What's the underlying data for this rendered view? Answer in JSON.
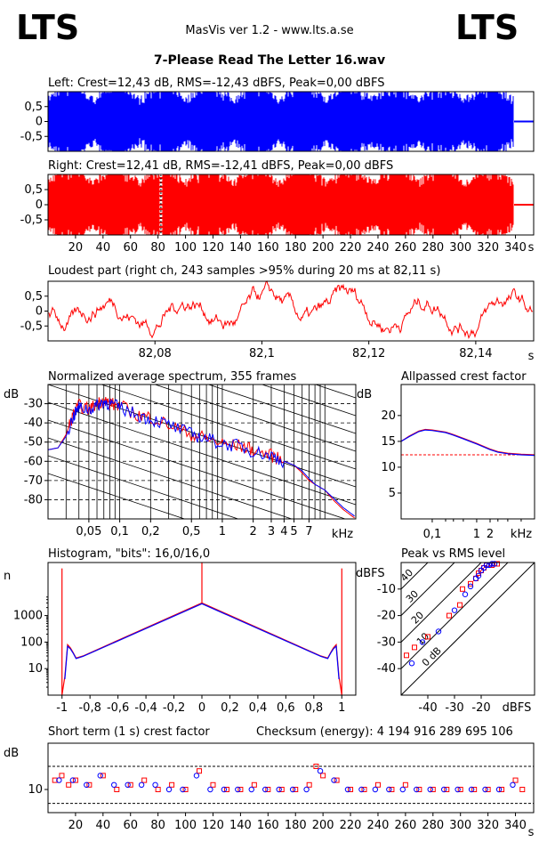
{
  "header": {
    "logo_left": "LTS",
    "logo_right": "LTS",
    "app": "MasVis ver 1.2 - www.lts.a.se",
    "file": "7-Please Read The Letter 16.wav"
  },
  "colors": {
    "left": "#0000ff",
    "right": "#ff0000",
    "grid": "#000000"
  },
  "chart_data": [
    {
      "type": "area",
      "name": "left-waveform",
      "title": "Left: Crest=12,43 dB, RMS=-12,43 dBFS, Peak=0,00 dBFS",
      "ylim": [
        -1,
        1
      ],
      "yticks": [
        "0,5",
        "0",
        "-0,5"
      ],
      "ytick_values": [
        0.5,
        0,
        -0.5
      ]
    },
    {
      "type": "area",
      "name": "right-waveform",
      "title": "Right: Crest=12,41 dB, RMS=-12,41 dBFS, Peak=0,00 dBFS",
      "ylim": [
        -1,
        1
      ],
      "yticks": [
        "0,5",
        "0",
        "-0,5"
      ],
      "ytick_values": [
        0.5,
        0,
        -0.5
      ],
      "xlim": [
        0,
        350
      ],
      "xticks": [
        "20",
        "40",
        "60",
        "80",
        "100",
        "120",
        "140",
        "160",
        "180",
        "200",
        "220",
        "240",
        "260",
        "280",
        "300",
        "320",
        "340"
      ],
      "xtick_values": [
        20,
        40,
        60,
        80,
        100,
        120,
        140,
        160,
        180,
        200,
        220,
        240,
        260,
        280,
        300,
        320,
        340
      ],
      "xunit": "s",
      "loudest_marker_x": 82.11
    },
    {
      "type": "line",
      "name": "loudest-part",
      "title": "Loudest part (right ch, 243 samples >95% during 20 ms at 82,11 s)",
      "ylim": [
        -1,
        1
      ],
      "yticks": [
        "0,5",
        "0",
        "-0,5"
      ],
      "ytick_values": [
        0.5,
        0,
        -0.5
      ],
      "xlim": [
        82.06,
        82.15
      ],
      "xticks": [
        "82,08",
        "82,1",
        "82,12",
        "82,14"
      ],
      "xtick_values": [
        82.08,
        82.1,
        82.12,
        82.14
      ],
      "xunit": "s"
    },
    {
      "type": "line",
      "name": "average-spectrum",
      "title": "Normalized average spectrum, 355 frames",
      "ylabel": "dB",
      "ylim": [
        -90,
        -20
      ],
      "yticks": [
        "-30",
        "-40",
        "-50",
        "-60",
        "-70",
        "-80"
      ],
      "ytick_values": [
        -30,
        -40,
        -50,
        -60,
        -70,
        -80
      ],
      "xscale": "log",
      "xlim": [
        0.02,
        20
      ],
      "xticks": [
        "0,05",
        "0,1",
        "0,2",
        "0,5",
        "1",
        "2",
        "3",
        "4",
        "5",
        "7"
      ],
      "xtick_values": [
        0.05,
        0.1,
        0.2,
        0.5,
        1,
        2,
        3,
        4,
        5,
        7
      ],
      "xunit": "kHz",
      "series": [
        {
          "color": "#ff0000",
          "x": [
            0.02,
            0.025,
            0.03,
            0.035,
            0.04,
            0.05,
            0.06,
            0.07,
            0.08,
            0.1,
            0.15,
            0.2,
            0.3,
            0.5,
            0.7,
            1,
            1.5,
            2,
            3,
            4,
            5,
            6,
            7,
            8,
            10,
            12,
            15,
            20
          ],
          "y": [
            -54,
            -53,
            -46,
            -36,
            -31,
            -33,
            -30,
            -28,
            -30,
            -31,
            -36,
            -37,
            -41,
            -46,
            -48,
            -51,
            -52,
            -54,
            -57,
            -60,
            -62,
            -66,
            -70,
            -72,
            -75,
            -80,
            -85,
            -90
          ]
        },
        {
          "color": "#0000ff",
          "x": [
            0.02,
            0.025,
            0.03,
            0.035,
            0.04,
            0.05,
            0.06,
            0.07,
            0.08,
            0.1,
            0.15,
            0.2,
            0.3,
            0.5,
            0.7,
            1,
            1.5,
            2,
            3,
            4,
            5,
            6,
            7,
            8,
            10,
            12,
            15,
            20
          ],
          "y": [
            -54,
            -53,
            -47,
            -37,
            -32,
            -33,
            -31,
            -29,
            -30,
            -32,
            -36,
            -38,
            -41,
            -46,
            -48,
            -51,
            -52,
            -55,
            -57,
            -60,
            -62,
            -65,
            -69,
            -72,
            -75,
            -79,
            -84,
            -89
          ]
        }
      ]
    },
    {
      "type": "line",
      "name": "allpassed-crest",
      "title": "Allpassed crest factor",
      "ylabel": "dB",
      "ylim": [
        0,
        26
      ],
      "yticks": [
        "20",
        "15",
        "10",
        "5"
      ],
      "ytick_values": [
        20,
        15,
        10,
        5
      ],
      "xscale": "log",
      "xlim": [
        0.02,
        20
      ],
      "xticks": [
        "0,1",
        "1",
        "2",
        "kHz"
      ],
      "xtick_values": [
        0.1,
        1,
        2
      ],
      "reference_line": 12.4,
      "series": [
        {
          "color": "#ff0000",
          "x": [
            0.02,
            0.03,
            0.05,
            0.07,
            0.1,
            0.2,
            0.3,
            0.5,
            1,
            2,
            3,
            5,
            10,
            20
          ],
          "y": [
            15,
            16,
            17,
            17.3,
            17.2,
            16.8,
            16.3,
            15.6,
            14.6,
            13.5,
            13,
            12.7,
            12.5,
            12.4
          ]
        },
        {
          "color": "#0000ff",
          "x": [
            0.02,
            0.03,
            0.05,
            0.07,
            0.1,
            0.2,
            0.3,
            0.5,
            1,
            2,
            3,
            5,
            10,
            20
          ],
          "y": [
            15,
            15.9,
            16.9,
            17.2,
            17.1,
            16.7,
            16.2,
            15.5,
            14.5,
            13.4,
            12.9,
            12.6,
            12.4,
            12.3
          ]
        }
      ]
    },
    {
      "type": "line",
      "name": "histogram",
      "title": "Histogram, \"bits\": 16,0/16,0",
      "ylabel": "n",
      "yscale": "log",
      "ylim": [
        1,
        100000
      ],
      "yticks": [
        "1000",
        "100",
        "10"
      ],
      "ytick_values": [
        1000,
        100,
        10
      ],
      "xlim": [
        -1.1,
        1.1
      ],
      "xticks": [
        "-1",
        "-0,8",
        "-0,6",
        "-0,4",
        "-0,2",
        "0",
        "0,2",
        "0,4",
        "0,6",
        "0,8",
        "1"
      ],
      "xtick_values": [
        -1,
        -0.8,
        -0.6,
        -0.4,
        -0.2,
        0,
        0.2,
        0.4,
        0.6,
        0.8,
        1
      ],
      "series": [
        {
          "color": "#ff0000",
          "x": [
            -1,
            -1,
            -0.98,
            -0.96,
            -0.94,
            -0.92,
            -0.9,
            -0.85,
            -0.5,
            0,
            0.5,
            0.85,
            0.9,
            0.92,
            0.94,
            0.96,
            0.98,
            1,
            1
          ],
          "y": [
            60000,
            1,
            5,
            80,
            60,
            40,
            25,
            30,
            200,
            3000,
            200,
            30,
            25,
            40,
            60,
            80,
            5,
            1,
            60000
          ]
        },
        {
          "color": "#0000ff",
          "x": [
            -0.98,
            -0.96,
            -0.94,
            -0.92,
            -0.9,
            -0.85,
            -0.5,
            0,
            0.5,
            0.85,
            0.9,
            0.92,
            0.94,
            0.96,
            0.98
          ],
          "y": [
            4,
            70,
            55,
            38,
            24,
            29,
            190,
            2800,
            190,
            29,
            24,
            38,
            55,
            70,
            4
          ]
        }
      ]
    },
    {
      "type": "scatter",
      "name": "peak-vs-rms",
      "title": "Peak vs RMS level",
      "ylabel": "dBFS",
      "xlim": [
        -50,
        0
      ],
      "ylim": [
        -50,
        0
      ],
      "yticks": [
        "-10",
        "-20",
        "-30",
        "-40"
      ],
      "ytick_values": [
        -10,
        -20,
        -30,
        -40
      ],
      "xticks": [
        "-40",
        "-30",
        "-20"
      ],
      "xtick_values": [
        -40,
        -30,
        -20
      ],
      "xunit": "dBFS",
      "diag_labels": [
        "40",
        "30",
        "20",
        "10",
        "0 dB"
      ],
      "diag_values": [
        40,
        30,
        20,
        10,
        0
      ],
      "series": [
        {
          "color": "#ff0000",
          "x": [
            -48,
            -45,
            -40,
            -32,
            -28,
            -27,
            -24,
            -22,
            -21,
            -20,
            -19,
            -18,
            -17,
            -16,
            -15,
            -14
          ],
          "y": [
            -35,
            -32,
            -28,
            -20,
            -16,
            -10,
            -8,
            -6,
            -4,
            -3,
            -2,
            -1,
            -1,
            -1,
            -0.5,
            -0.5
          ]
        },
        {
          "color": "#0000ff",
          "x": [
            -46,
            -42,
            -36,
            -30,
            -26,
            -24,
            -22,
            -21,
            -20,
            -19,
            -18,
            -17,
            -16,
            -15
          ],
          "y": [
            -38,
            -30,
            -26,
            -18,
            -12,
            -9,
            -6,
            -5,
            -3,
            -2,
            -1,
            -1,
            -0.5,
            -0.5
          ]
        }
      ]
    },
    {
      "type": "scatter",
      "name": "short-term-crest",
      "title": "Short term (1 s) crest factor",
      "checksum": "Checksum (energy):  4 194 916 289 695 106",
      "ylabel": "dB",
      "ylim": [
        5,
        20
      ],
      "yticks": [
        "10"
      ],
      "ytick_values": [
        10
      ],
      "reference_lines": [
        15,
        7
      ],
      "xlim": [
        0,
        350
      ],
      "xticks": [
        "20",
        "40",
        "60",
        "80",
        "100",
        "120",
        "140",
        "160",
        "180",
        "200",
        "220",
        "240",
        "260",
        "280",
        "300",
        "320",
        "340"
      ],
      "xtick_values": [
        20,
        40,
        60,
        80,
        100,
        120,
        140,
        160,
        180,
        200,
        220,
        240,
        260,
        280,
        300,
        320,
        340
      ],
      "xunit": "s",
      "series": [
        {
          "color": "#ff0000",
          "x": [
            5,
            10,
            15,
            20,
            30,
            40,
            50,
            60,
            70,
            80,
            90,
            100,
            110,
            120,
            130,
            140,
            150,
            160,
            170,
            180,
            190,
            195,
            200,
            210,
            220,
            230,
            240,
            250,
            260,
            270,
            280,
            290,
            300,
            310,
            320,
            330,
            340,
            345
          ],
          "y": [
            12,
            13,
            11,
            12,
            11,
            13,
            10,
            11,
            12,
            10,
            11,
            10,
            14,
            11,
            10,
            10,
            11,
            10,
            10,
            10,
            11,
            15,
            13,
            12,
            10,
            10,
            11,
            10,
            11,
            10,
            10,
            10,
            10,
            10,
            10,
            10,
            12,
            10
          ]
        },
        {
          "color": "#0000ff",
          "x": [
            8,
            18,
            28,
            38,
            48,
            58,
            68,
            78,
            88,
            98,
            108,
            118,
            128,
            138,
            148,
            158,
            168,
            178,
            188,
            198,
            208,
            218,
            228,
            238,
            248,
            258,
            268,
            278,
            288,
            298,
            308,
            318,
            328,
            338
          ],
          "y": [
            12,
            12,
            11,
            13,
            11,
            11,
            11,
            11,
            10,
            10,
            13,
            10,
            10,
            10,
            10,
            10,
            10,
            10,
            10,
            14,
            12,
            10,
            10,
            10,
            10,
            10,
            10,
            10,
            10,
            10,
            10,
            10,
            10,
            11
          ]
        }
      ]
    }
  ]
}
